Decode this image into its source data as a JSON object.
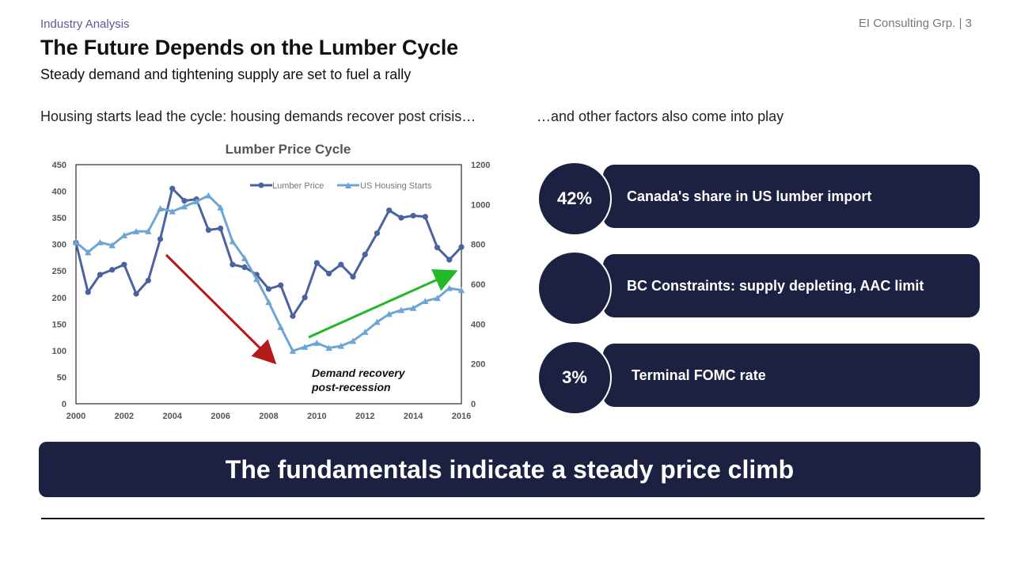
{
  "header": {
    "section": "Industry Analysis",
    "firm": "EI Consulting Grp. | 3",
    "title": "The Future Depends on the Lumber Cycle",
    "subtitle": "Steady demand and tightening supply are set to fuel a rally"
  },
  "left_heading": "Housing starts lead the cycle: housing demands recover post crisis…",
  "right_heading": "…and other factors also come into play",
  "factors": [
    {
      "badge": "42%",
      "label": "Canada's share in US lumber import"
    },
    {
      "badge": "",
      "label": "BC Constraints: supply depleting, AAC limit"
    },
    {
      "badge": "3%",
      "label": "Terminal FOMC rate"
    }
  ],
  "banner": "The fundamentals indicate a steady price climb",
  "colors": {
    "navy": "#1c2142",
    "lumber": "#4a63a0",
    "housing": "#6fa5d2",
    "down_arrow": "#b31b1b",
    "up_arrow": "#22b82a"
  },
  "chart_data": {
    "type": "line",
    "title": "Lumber Price Cycle",
    "annotation": [
      "Demand recovery",
      "post-recession"
    ],
    "x_ticks": [
      "2000",
      "2002",
      "2004",
      "2006",
      "2008",
      "2010",
      "2012",
      "2014",
      "2016"
    ],
    "xlim": [
      2000,
      2016
    ],
    "y_left_ticks": [
      "0",
      "50",
      "100",
      "150",
      "200",
      "250",
      "300",
      "350",
      "400",
      "450"
    ],
    "y_left_lim": [
      0,
      450
    ],
    "y_right_ticks": [
      "0",
      "200",
      "400",
      "600",
      "800",
      "1000",
      "1200"
    ],
    "y_right_lim": [
      0,
      1200
    ],
    "legend_position": "top-right",
    "grid": false,
    "series": [
      {
        "name": "Lumber Price",
        "axis": "left",
        "color": "#4a63a0",
        "marker": "circle",
        "x": [
          2000,
          2000.5,
          2001,
          2001.5,
          2002,
          2002.5,
          2003,
          2003.5,
          2004,
          2004.5,
          2005,
          2005.5,
          2006,
          2006.5,
          2007,
          2007.5,
          2008,
          2008.5,
          2009,
          2009.5,
          2010,
          2010.5,
          2011,
          2011.5,
          2012,
          2012.5,
          2013,
          2013.5,
          2014,
          2014.5,
          2015,
          2015.5,
          2016
        ],
        "values": [
          303,
          210,
          243,
          252,
          262,
          207,
          232,
          310,
          405,
          382,
          385,
          327,
          330,
          262,
          257,
          243,
          216,
          223,
          165,
          200,
          265,
          245,
          262,
          239,
          281,
          321,
          364,
          350,
          354,
          352,
          294,
          271,
          295
        ]
      },
      {
        "name": "US Housing Starts",
        "axis": "right",
        "color": "#6fa5d2",
        "marker": "triangle",
        "x": [
          2000,
          2000.5,
          2001,
          2001.5,
          2002,
          2002.5,
          2003,
          2003.5,
          2004,
          2004.5,
          2005,
          2005.5,
          2006,
          2006.5,
          2007,
          2007.5,
          2008,
          2008.5,
          2009,
          2009.5,
          2010,
          2010.5,
          2011,
          2011.5,
          2012,
          2012.5,
          2013,
          2013.5,
          2014,
          2014.5,
          2015,
          2015.5,
          2016
        ],
        "values": [
          810,
          760,
          810,
          795,
          845,
          865,
          865,
          980,
          965,
          990,
          1015,
          1045,
          985,
          815,
          730,
          625,
          510,
          385,
          265,
          285,
          305,
          280,
          290,
          315,
          360,
          410,
          450,
          470,
          480,
          515,
          530,
          580,
          570
        ]
      }
    ]
  }
}
